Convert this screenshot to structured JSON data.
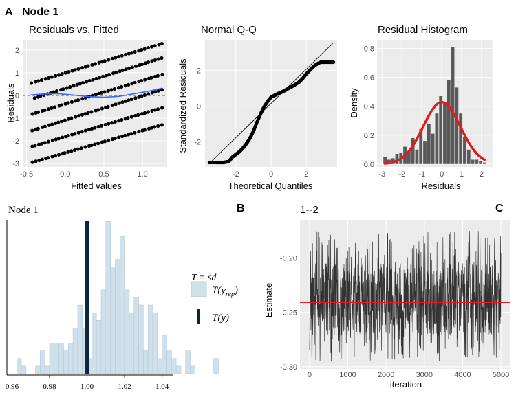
{
  "panel_letters": {
    "a": "A",
    "b": "B",
    "c": "C"
  },
  "figure_title": "Node 1",
  "colors": {
    "panel_bg": "#ebebeb",
    "grid": "#ffffff",
    "points": "#000000",
    "smooth": "#3366ff",
    "ref_line": "#e41a1c",
    "hist_bar": "#595959",
    "ppc_fill": "#cfe0ea",
    "ppc_line": "#0b2440",
    "trace": "#333333"
  },
  "chart_data": [
    {
      "id": "resid_fitted",
      "type": "scatter",
      "title": "Residuals vs. Fitted",
      "xlabel": "Fitted values",
      "ylabel": "Residuals",
      "xlim": [
        -0.55,
        1.32
      ],
      "ylim": [
        -3.15,
        2.45
      ],
      "xticks": [
        "-0.5",
        "0.0",
        "0.5",
        "1.0"
      ],
      "yticks": [
        "-3",
        "-2",
        "-1",
        "0",
        "1",
        "2"
      ],
      "bands": [
        {
          "x0": -0.43,
          "x1": 1.25,
          "y0": 0.55,
          "y1": 2.28
        },
        {
          "x0": -0.4,
          "x1": 1.25,
          "y0": -0.12,
          "y1": 1.65
        },
        {
          "x0": -0.43,
          "x1": 1.25,
          "y0": -0.82,
          "y1": 0.92
        },
        {
          "x0": -0.43,
          "x1": 1.25,
          "y0": -1.55,
          "y1": 0.25
        },
        {
          "x0": -0.43,
          "x1": 1.25,
          "y0": -2.25,
          "y1": -0.55
        },
        {
          "x0": -0.43,
          "x1": 1.25,
          "y0": -2.95,
          "y1": -1.3
        }
      ],
      "smooth_x": [
        -0.45,
        -0.3,
        -0.1,
        0.1,
        0.3,
        0.5,
        0.7,
        0.9,
        1.1,
        1.25
      ],
      "smooth_y": [
        0.02,
        0.06,
        0.08,
        0.02,
        -0.05,
        -0.08,
        -0.04,
        0.08,
        0.2,
        0.32
      ],
      "hline": 0
    },
    {
      "id": "qq",
      "type": "scatter",
      "title": "Normal Q-Q",
      "xlabel": "Theoretical Quantiles",
      "ylabel": "Standardized Residuals",
      "xlim": [
        -3.75,
        3.75
      ],
      "ylim": [
        -3.4,
        3.7
      ],
      "xticks": [
        "-2",
        "0",
        "2"
      ],
      "yticks": [
        "-2",
        "0",
        "2"
      ],
      "qq_x": [
        -3.5,
        -3.0,
        -2.7,
        -2.4,
        -2.2,
        -2.0,
        -1.8,
        -1.6,
        -1.4,
        -1.2,
        -1.0,
        -0.8,
        -0.6,
        -0.4,
        -0.2,
        0.0,
        0.2,
        0.4,
        0.6,
        0.8,
        1.0,
        1.2,
        1.4,
        1.6,
        1.8,
        2.0,
        2.2,
        2.4,
        2.6,
        2.8,
        3.0,
        3.3,
        3.6
      ],
      "qq_y": [
        -3.15,
        -3.15,
        -3.15,
        -3.1,
        -2.85,
        -2.7,
        -2.55,
        -2.35,
        -2.1,
        -1.8,
        -1.4,
        -0.9,
        -0.45,
        -0.05,
        0.25,
        0.5,
        0.6,
        0.7,
        0.78,
        0.88,
        1.0,
        1.1,
        1.22,
        1.35,
        1.55,
        1.8,
        2.0,
        2.2,
        2.35,
        2.45,
        2.45,
        2.45,
        2.45
      ],
      "ref_line": [
        [
          -3.5,
          -3.2
        ],
        [
          3.5,
          3.5
        ]
      ]
    },
    {
      "id": "resid_hist",
      "type": "bar",
      "title": "Residual Histogram",
      "xlabel": "Residuals",
      "ylabel": "Density",
      "xlim": [
        -3.25,
        2.55
      ],
      "ylim": [
        -0.02,
        0.86
      ],
      "xticks": [
        "-3",
        "-2",
        "-1",
        "0",
        "1",
        "2"
      ],
      "yticks": [
        "0.0",
        "0.2",
        "0.4",
        "0.6",
        "0.8"
      ],
      "bin_start": -2.95,
      "bin_width": 0.2,
      "values": [
        0.05,
        0.03,
        0.04,
        0.07,
        0.08,
        0.12,
        0.09,
        0.18,
        0.1,
        0.24,
        0.16,
        0.28,
        0.21,
        0.35,
        0.47,
        0.42,
        0.58,
        0.81,
        0.53,
        0.35,
        0.19,
        0.1,
        0.03,
        0.03,
        0.02,
        0.01
      ],
      "density_curve": {
        "mean": 0.0,
        "sd": 0.93
      }
    },
    {
      "id": "ppc",
      "type": "bar",
      "title": "Node 1",
      "xlim": [
        0.958,
        1.046
      ],
      "ylim": [
        0,
        1
      ],
      "xticks": [
        "0.96",
        "0.98",
        "1.00",
        "1.02",
        "1.04"
      ],
      "bin_start": 0.9625,
      "bin_width": 0.0025,
      "values": [
        0.1,
        0.05,
        0.0,
        0.0,
        0.05,
        0.15,
        0.05,
        0.2,
        0.2,
        0.2,
        0.15,
        0.2,
        0.3,
        0.45,
        0.3,
        0.1,
        0.4,
        0.35,
        0.55,
        1.0,
        0.7,
        0.75,
        0.9,
        0.55,
        0.4,
        0.5,
        0.45,
        0.15,
        0.45,
        0.4,
        0.1,
        0.25,
        0.15,
        0.1,
        0.05,
        0.0,
        0.15,
        0.05,
        0.0,
        0.0,
        0.0,
        0.0,
        0.1
      ],
      "observed": 1.0,
      "legend": {
        "title": "T = sd",
        "rep": "T(y",
        "rep_sub": "rep",
        "rep_close": ")",
        "obs": "T(y)"
      }
    },
    {
      "id": "trace",
      "type": "line",
      "title": "1--2",
      "xlabel": "iteration",
      "ylabel": "Estimate",
      "xlim": [
        -250,
        5250
      ],
      "ylim": [
        -0.302,
        -0.165
      ],
      "xticks": [
        "0",
        "1000",
        "2000",
        "3000",
        "4000",
        "5000"
      ],
      "yticks": [
        "-0.30",
        "-0.25",
        "-0.20"
      ],
      "center": -0.241,
      "band": [
        -0.272,
        -0.205
      ],
      "extremes": [
        -0.295,
        -0.175
      ],
      "hline": -0.241
    }
  ]
}
